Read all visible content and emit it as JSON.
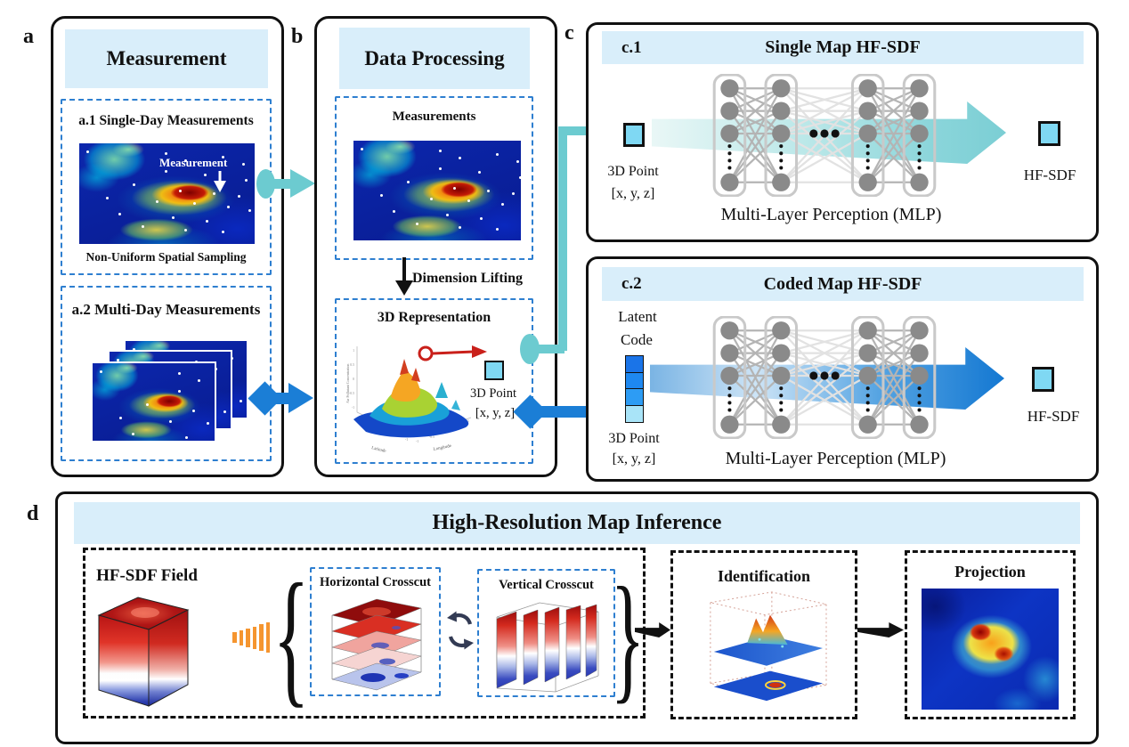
{
  "colors": {
    "banner": "#d9eefa",
    "dashed_blue": "#2e7fd0",
    "teal": "#6ccbd0",
    "blue": "#1b7ed6",
    "cyan_square": "#7fd8f3",
    "node_gray": "#8a8a8a",
    "orange": "#f5952f"
  },
  "panel_a": {
    "tag": "a",
    "title": "Measurement",
    "a1": {
      "title": "a.1 Single-Day Measurements",
      "map_annotation": "Measurement",
      "caption": "Non-Uniform Spatial Sampling"
    },
    "a2": {
      "title": "a.2 Multi-Day Measurements"
    }
  },
  "panel_b": {
    "tag": "b",
    "title": "Data Processing",
    "measurements_title": "Measurements",
    "lifting_label": "Dimension Lifting",
    "representation_title": "3D Representation",
    "plot": {
      "xlabel": "Longitude",
      "ylabel": "Latitude",
      "zlabel": "Air Pollutant Concentration",
      "z_ticks": [
        "1",
        "0.5",
        "0",
        "-0.5",
        "-1"
      ],
      "y_ticks": [
        "1",
        "0.5",
        "0",
        "-0.5",
        "-1"
      ],
      "x_ticks": [
        "-1",
        "-0.5",
        "0",
        "0.5",
        "1"
      ]
    },
    "point_line1": "3D Point",
    "point_line2": "[x, y, z]"
  },
  "panel_c": {
    "tag": "c",
    "c1": {
      "tag": "c.1",
      "title": "Single Map HF-SDF",
      "input_line1": "3D Point",
      "input_line2": "[x, y, z]",
      "output_label": "HF-SDF",
      "mlp_caption": "Multi-Layer Perception (MLP)"
    },
    "c2": {
      "tag": "c.2",
      "title": "Coded Map HF-SDF",
      "latent_line1": "Latent",
      "latent_line2": "Code",
      "input_line1": "3D Point",
      "input_line2": "[x, y, z]",
      "output_label": "HF-SDF",
      "mlp_caption": "Multi-Layer Perception (MLP)"
    }
  },
  "panel_d": {
    "tag": "d",
    "title": "High-Resolution Map Inference",
    "field_label": "HF-SDF Field",
    "horizontal_label": "Horizontal Crosscut",
    "vertical_label": "Vertical Crosscut",
    "identification_label": "Identification",
    "projection_label": "Projection"
  }
}
